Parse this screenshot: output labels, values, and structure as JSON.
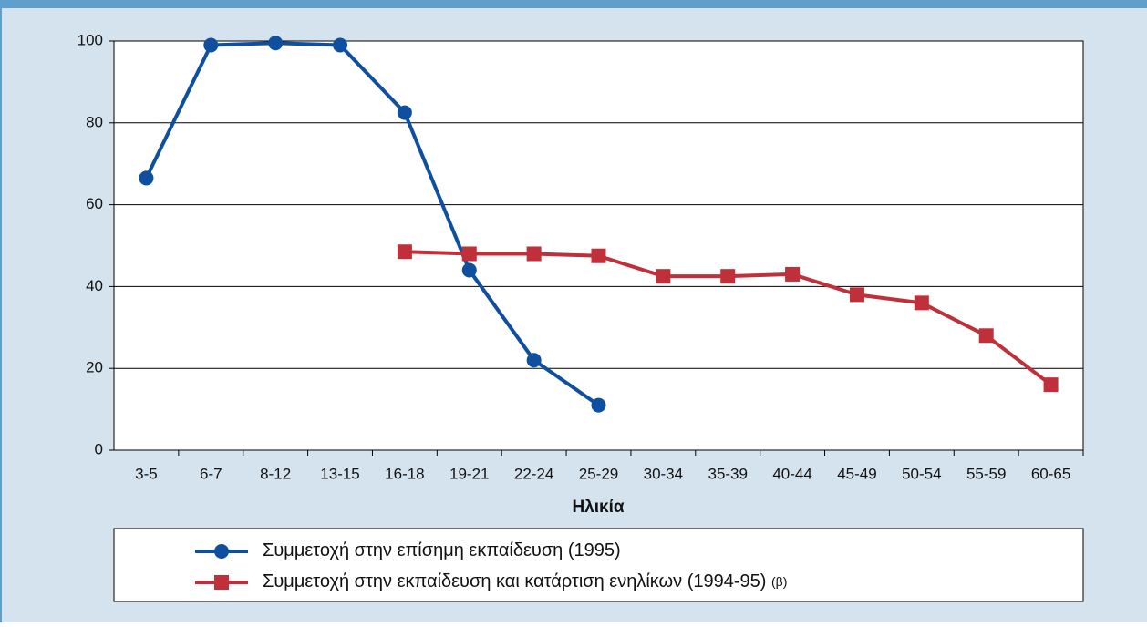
{
  "chart_data": {
    "type": "line",
    "xlabel": "Ηλικία",
    "categories": [
      "3-5",
      "6-7",
      "8-12",
      "13-15",
      "16-18",
      "19-21",
      "22-24",
      "25-29",
      "30-34",
      "35-39",
      "40-44",
      "45-49",
      "50-54",
      "55-59",
      "60-65"
    ],
    "series": [
      {
        "name": "Συμμετοχή στην επίσημη εκπαίδευση (1995)",
        "color": "#0f4fa0",
        "marker": "circle",
        "values": [
          66.5,
          99,
          99.5,
          99,
          82.5,
          44,
          22,
          11,
          null,
          null,
          null,
          null,
          null,
          null,
          null
        ]
      },
      {
        "name": "Συμμετοχή στην εκπαίδευση και κατάρτιση ενηλίκων (1994-95)",
        "note": "(β)",
        "color": "#c0303a",
        "marker": "square",
        "values": [
          null,
          null,
          null,
          null,
          48.5,
          48,
          48,
          47.5,
          42.5,
          42.5,
          43,
          38,
          36,
          28,
          16
        ]
      }
    ],
    "ylim": [
      0,
      100
    ],
    "yticks": [
      0,
      20,
      40,
      60,
      80,
      100
    ],
    "grid": true
  }
}
